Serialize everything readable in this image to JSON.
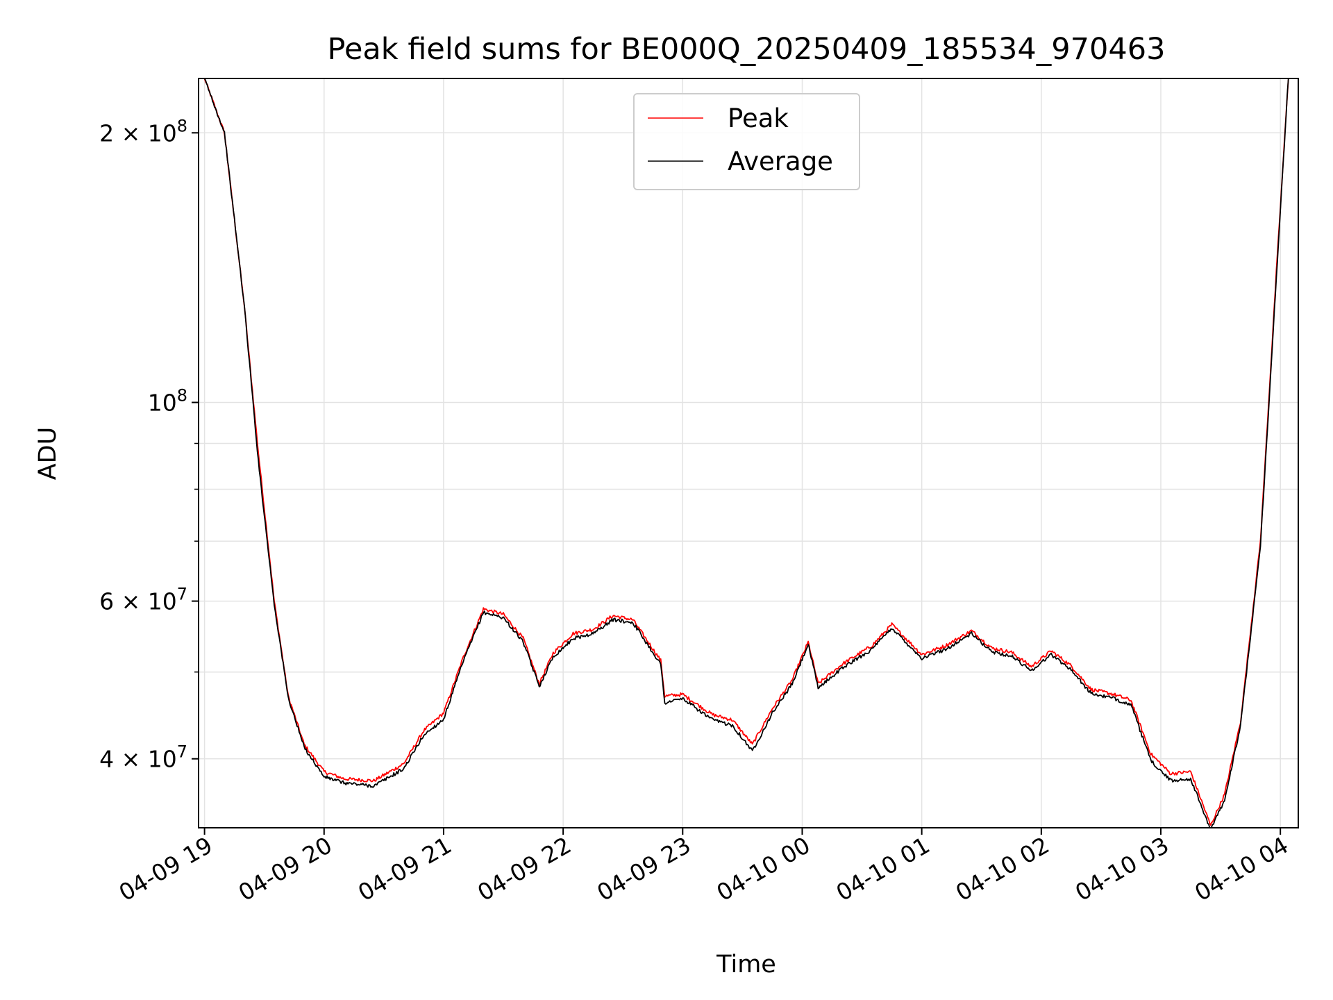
{
  "chart_data": {
    "type": "line",
    "title": "Peak field sums for BE000Q_20250409_185534_970463",
    "xlabel": "Time",
    "ylabel": "ADU",
    "y_scale": "log",
    "ylim": [
      33500000,
      230000000
    ],
    "xlim": [
      "2025-04-09 18:57",
      "2025-04-10 04:09"
    ],
    "grid": true,
    "legend_position": "top-center",
    "x_tick_labels": [
      "04-09 19",
      "04-09 20",
      "04-09 21",
      "04-09 22",
      "04-09 23",
      "04-10 00",
      "04-10 01",
      "04-10 02",
      "04-10 03",
      "04-10 04"
    ],
    "y_major_ticks": [
      {
        "value": 40000000,
        "mantissa": "4",
        "exponent": "7"
      },
      {
        "value": 60000000,
        "mantissa": "6",
        "exponent": "7"
      },
      {
        "value": 100000000,
        "mantissa": "",
        "exponent": "8"
      },
      {
        "value": 200000000,
        "mantissa": "2",
        "exponent": "8"
      }
    ],
    "y_minor_ticks": [
      50000000,
      70000000,
      80000000,
      90000000
    ],
    "series": [
      {
        "name": "Peak",
        "color": "#ff0000",
        "points": [
          [
            "2025-04-09 19:00",
            230000000
          ],
          [
            "2025-04-09 19:10",
            200000000
          ],
          [
            "2025-04-09 19:20",
            128000000
          ],
          [
            "2025-04-09 19:27",
            88000000
          ],
          [
            "2025-04-09 19:35",
            60000000
          ],
          [
            "2025-04-09 19:42",
            47000000
          ],
          [
            "2025-04-09 19:50",
            41500000
          ],
          [
            "2025-04-09 20:00",
            38700000
          ],
          [
            "2025-04-09 20:10",
            38000000
          ],
          [
            "2025-04-09 20:25",
            37800000
          ],
          [
            "2025-04-09 20:40",
            39500000
          ],
          [
            "2025-04-09 20:50",
            43000000
          ],
          [
            "2025-04-09 21:00",
            45000000
          ],
          [
            "2025-04-09 21:10",
            52000000
          ],
          [
            "2025-04-09 21:20",
            58800000
          ],
          [
            "2025-04-09 21:30",
            58000000
          ],
          [
            "2025-04-09 21:40",
            54500000
          ],
          [
            "2025-04-09 21:48",
            48500000
          ],
          [
            "2025-04-09 21:55",
            52500000
          ],
          [
            "2025-04-09 22:05",
            55200000
          ],
          [
            "2025-04-09 22:15",
            55800000
          ],
          [
            "2025-04-09 22:25",
            57800000
          ],
          [
            "2025-04-09 22:35",
            57200000
          ],
          [
            "2025-04-09 22:49",
            51500000
          ],
          [
            "2025-04-09 22:51",
            47000000
          ],
          [
            "2025-04-09 23:00",
            47200000
          ],
          [
            "2025-04-09 23:15",
            44800000
          ],
          [
            "2025-04-09 23:25",
            44200000
          ],
          [
            "2025-04-09 23:35",
            41500000
          ],
          [
            "2025-04-09 23:45",
            45500000
          ],
          [
            "2025-04-09 23:55",
            49000000
          ],
          [
            "2025-04-10 00:03",
            54000000
          ],
          [
            "2025-04-10 00:08",
            48500000
          ],
          [
            "2025-04-10 00:20",
            51000000
          ],
          [
            "2025-04-10 00:35",
            53500000
          ],
          [
            "2025-04-10 00:45",
            56500000
          ],
          [
            "2025-04-10 01:00",
            52300000
          ],
          [
            "2025-04-10 01:12",
            53500000
          ],
          [
            "2025-04-10 01:25",
            55600000
          ],
          [
            "2025-04-10 01:35",
            53200000
          ],
          [
            "2025-04-10 01:45",
            52600000
          ],
          [
            "2025-04-10 01:55",
            50700000
          ],
          [
            "2025-04-10 02:05",
            52800000
          ],
          [
            "2025-04-10 02:15",
            50800000
          ],
          [
            "2025-04-10 02:25",
            47800000
          ],
          [
            "2025-04-10 02:35",
            47300000
          ],
          [
            "2025-04-10 02:45",
            46500000
          ],
          [
            "2025-04-10 02:55",
            40500000
          ],
          [
            "2025-04-10 03:05",
            38500000
          ],
          [
            "2025-04-10 03:15",
            38700000
          ],
          [
            "2025-04-10 03:25",
            33700000
          ],
          [
            "2025-04-10 03:32",
            36500000
          ],
          [
            "2025-04-10 03:40",
            44000000
          ],
          [
            "2025-04-10 03:50",
            70000000
          ],
          [
            "2025-04-10 03:58",
            140000000
          ],
          [
            "2025-04-10 04:04",
            230000000
          ]
        ]
      },
      {
        "name": "Average",
        "color": "#000000",
        "points": [
          [
            "2025-04-09 19:00",
            230000000
          ],
          [
            "2025-04-09 19:10",
            200000000
          ],
          [
            "2025-04-09 19:20",
            128000000
          ],
          [
            "2025-04-09 19:27",
            86000000
          ],
          [
            "2025-04-09 19:35",
            59500000
          ],
          [
            "2025-04-09 19:42",
            46800000
          ],
          [
            "2025-04-09 19:50",
            41200000
          ],
          [
            "2025-04-09 20:00",
            38200000
          ],
          [
            "2025-04-09 20:10",
            37600000
          ],
          [
            "2025-04-09 20:25",
            37300000
          ],
          [
            "2025-04-09 20:40",
            39000000
          ],
          [
            "2025-04-09 20:50",
            42500000
          ],
          [
            "2025-04-09 21:00",
            44300000
          ],
          [
            "2025-04-09 21:10",
            51500000
          ],
          [
            "2025-04-09 21:20",
            58300000
          ],
          [
            "2025-04-09 21:30",
            57500000
          ],
          [
            "2025-04-09 21:40",
            54000000
          ],
          [
            "2025-04-09 21:48",
            48200000
          ],
          [
            "2025-04-09 21:55",
            52000000
          ],
          [
            "2025-04-09 22:05",
            54500000
          ],
          [
            "2025-04-09 22:15",
            55200000
          ],
          [
            "2025-04-09 22:25",
            57200000
          ],
          [
            "2025-04-09 22:35",
            56800000
          ],
          [
            "2025-04-09 22:49",
            51000000
          ],
          [
            "2025-04-09 22:51",
            46200000
          ],
          [
            "2025-04-09 23:00",
            46700000
          ],
          [
            "2025-04-09 23:15",
            44200000
          ],
          [
            "2025-04-09 23:25",
            43600000
          ],
          [
            "2025-04-09 23:35",
            40800000
          ],
          [
            "2025-04-09 23:45",
            45000000
          ],
          [
            "2025-04-09 23:55",
            48500000
          ],
          [
            "2025-04-10 00:03",
            53700000
          ],
          [
            "2025-04-10 00:08",
            48000000
          ],
          [
            "2025-04-10 00:20",
            50500000
          ],
          [
            "2025-04-10 00:35",
            53000000
          ],
          [
            "2025-04-10 00:45",
            56000000
          ],
          [
            "2025-04-10 01:00",
            51800000
          ],
          [
            "2025-04-10 01:12",
            53000000
          ],
          [
            "2025-04-10 01:25",
            55200000
          ],
          [
            "2025-04-10 01:35",
            52700000
          ],
          [
            "2025-04-10 01:45",
            52100000
          ],
          [
            "2025-04-10 01:55",
            50200000
          ],
          [
            "2025-04-10 02:05",
            52300000
          ],
          [
            "2025-04-10 02:15",
            50300000
          ],
          [
            "2025-04-10 02:25",
            47300000
          ],
          [
            "2025-04-10 02:35",
            46800000
          ],
          [
            "2025-04-10 02:45",
            46000000
          ],
          [
            "2025-04-10 02:55",
            39800000
          ],
          [
            "2025-04-10 03:05",
            37800000
          ],
          [
            "2025-04-10 03:15",
            38000000
          ],
          [
            "2025-04-10 03:25",
            33300000
          ],
          [
            "2025-04-10 03:32",
            36000000
          ],
          [
            "2025-04-10 03:40",
            43500000
          ],
          [
            "2025-04-10 03:50",
            69000000
          ],
          [
            "2025-04-10 03:58",
            138000000
          ],
          [
            "2025-04-10 04:04",
            230000000
          ]
        ]
      }
    ]
  }
}
